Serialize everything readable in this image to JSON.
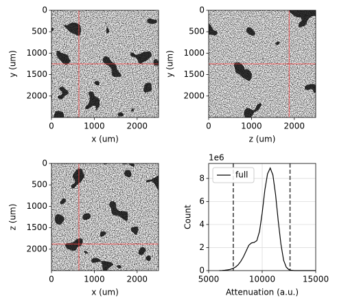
{
  "chart_data": [
    {
      "type": "image",
      "xlabel": "x (um)",
      "ylabel": "y (um)",
      "xlim": [
        0,
        2500
      ],
      "ylim": [
        2500,
        0
      ],
      "xticks": [
        0,
        1000,
        2000
      ],
      "yticks": [
        0,
        500,
        1000,
        1500,
        2000
      ],
      "crosshair": {
        "x": 640,
        "y": 1250,
        "color": "#ff4040"
      }
    },
    {
      "type": "image",
      "xlabel": "z (um)",
      "ylabel": "y (um)",
      "xlim": [
        0,
        2500
      ],
      "ylim": [
        2500,
        0
      ],
      "xticks": [
        0,
        1000,
        2000
      ],
      "yticks": [
        0,
        500,
        1000,
        1500,
        2000
      ],
      "crosshair": {
        "x": 1880,
        "y": 1250,
        "color": "#ff4040"
      }
    },
    {
      "type": "image",
      "xlabel": "x (um)",
      "ylabel": "z (um)",
      "xlim": [
        0,
        2500
      ],
      "ylim": [
        2500,
        0
      ],
      "xticks": [
        0,
        1000,
        2000
      ],
      "yticks": [
        0,
        500,
        1000,
        1500,
        2000
      ],
      "crosshair": {
        "x": 640,
        "y": 1880,
        "color": "#ff4040"
      }
    },
    {
      "type": "line",
      "xlabel": "Attenuation (a.u.)",
      "ylabel": "Count",
      "y_offset_label": "1e6",
      "xlim": [
        5000,
        15000
      ],
      "ylim": [
        0,
        9.3
      ],
      "xticks": [
        5000,
        10000,
        15000
      ],
      "yticks": [
        0,
        2,
        4,
        6,
        8
      ],
      "grid": true,
      "legend": "upper-left",
      "vlines": [
        7300,
        12600
      ],
      "vline_color": "#333333",
      "x": [
        6000,
        6250,
        6500,
        6750,
        7000,
        7250,
        7500,
        7750,
        8000,
        8250,
        8500,
        8750,
        9000,
        9250,
        9500,
        9750,
        10000,
        10250,
        10500,
        10750,
        11000,
        11250,
        11500,
        11750,
        12000,
        12250,
        12500,
        12750,
        13000,
        14000,
        15000
      ],
      "series": [
        {
          "name": "full",
          "color": "#000000",
          "values": [
            0,
            0.01,
            0.03,
            0.06,
            0.1,
            0.18,
            0.3,
            0.5,
            0.8,
            1.2,
            1.7,
            2.2,
            2.4,
            2.45,
            2.6,
            3.4,
            5.0,
            7.0,
            8.4,
            8.9,
            8.3,
            6.6,
            4.3,
            2.3,
            0.9,
            0.3,
            0.08,
            0.02,
            0,
            0,
            0
          ]
        }
      ]
    }
  ]
}
